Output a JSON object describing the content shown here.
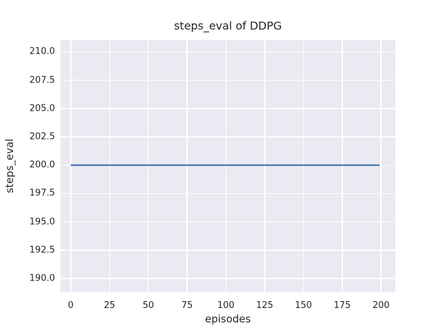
{
  "chart_data": {
    "type": "line",
    "title": "steps_eval of DDPG",
    "xlabel": "episodes",
    "ylabel": "steps_eval",
    "xlim": [
      -6.6,
      209.2
    ],
    "ylim": [
      188.8,
      211.05
    ],
    "xticks": {
      "values": [
        0,
        25,
        50,
        75,
        100,
        125,
        150,
        175,
        200
      ],
      "labels": [
        "0",
        "25",
        "50",
        "75",
        "100",
        "125",
        "150",
        "175",
        "200"
      ]
    },
    "yticks": {
      "values": [
        190,
        192.5,
        195,
        197.5,
        200,
        202.5,
        205,
        207.5,
        210
      ],
      "labels": [
        "190.0",
        "192.5",
        "195.0",
        "197.5",
        "200.0",
        "202.5",
        "205.0",
        "207.5",
        "210.0"
      ]
    },
    "grid": true,
    "legend": "none",
    "series": [
      {
        "name": "steps_eval",
        "color": "#4c72b0",
        "line_width": 2.2,
        "x": [
          0,
          199
        ],
        "y": [
          200,
          200
        ]
      }
    ],
    "styles": {
      "figure_background": "#ffffff",
      "plot_background": "#eaeaf2",
      "grid_color": "#ffffff",
      "text_color": "#262626"
    }
  }
}
